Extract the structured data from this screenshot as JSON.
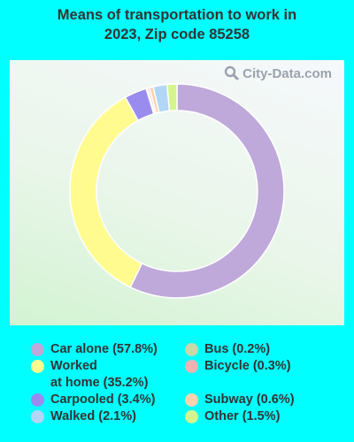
{
  "title": "Means of transportation to work in\n2023, Zip code 85258",
  "watermark": "City-Data.com",
  "chart_data": {
    "type": "pie",
    "style": "donut",
    "slices": [
      {
        "label": "Car alone",
        "value": 57.8,
        "color": "#BFA8DA",
        "legend": "Car alone (57.8%)"
      },
      {
        "label": "Worked at home",
        "value": 35.2,
        "color": "#FFFB8F",
        "legend": "Worked\nat home (35.2%)"
      },
      {
        "label": "Carpooled",
        "value": 3.4,
        "color": "#9A8BEF",
        "legend": "Carpooled (3.4%)"
      },
      {
        "label": "Bus",
        "value": 0.2,
        "color": "#C8D8A8",
        "legend": "Bus (0.2%)"
      },
      {
        "label": "Bicycle",
        "value": 0.3,
        "color": "#F0B2B2",
        "legend": "Bicycle (0.3%)"
      },
      {
        "label": "Subway",
        "value": 0.6,
        "color": "#FCD3AC",
        "legend": "Subway (0.6%)"
      },
      {
        "label": "Walked",
        "value": 2.1,
        "color": "#B2D6F5",
        "legend": "Walked (2.1%)"
      },
      {
        "label": "Other",
        "value": 1.5,
        "color": "#D4F58E",
        "legend": "Other (1.5%)"
      }
    ]
  }
}
